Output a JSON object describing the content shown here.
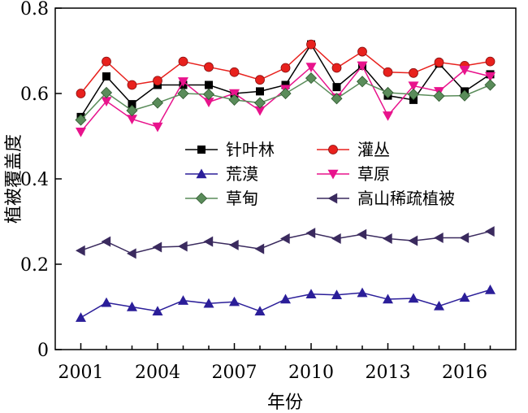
{
  "chart_data": {
    "type": "line",
    "xlabel": "年份",
    "ylabel": "植被覆盖度",
    "xlim": [
      2000,
      2018
    ],
    "ylim": [
      0,
      0.8
    ],
    "xticks": [
      "2001",
      "2004",
      "2007",
      "2010",
      "2013",
      "2016"
    ],
    "yticks": [
      "0",
      "0.2",
      "0.4",
      "0.6",
      "0.8"
    ],
    "grid": false,
    "legend_placement": "center",
    "x": [
      2001,
      2002,
      2003,
      2004,
      2005,
      2006,
      2007,
      2008,
      2009,
      2010,
      2011,
      2012,
      2013,
      2014,
      2015,
      2016,
      2017
    ],
    "series": [
      {
        "name": "针叶林",
        "color": "#000000",
        "marker": "square",
        "values": [
          0.545,
          0.64,
          0.575,
          0.62,
          0.62,
          0.62,
          0.6,
          0.605,
          0.62,
          0.715,
          0.615,
          0.665,
          0.595,
          0.585,
          0.67,
          0.605,
          0.645
        ]
      },
      {
        "name": "灌丛",
        "color": "#e8211d",
        "marker": "circle",
        "values": [
          0.6,
          0.675,
          0.62,
          0.63,
          0.675,
          0.662,
          0.65,
          0.632,
          0.66,
          0.715,
          0.66,
          0.698,
          0.65,
          0.648,
          0.673,
          0.665,
          0.675
        ]
      },
      {
        "name": "荒漠",
        "color": "#2b1e99",
        "marker": "triangle-up",
        "values": [
          0.075,
          0.11,
          0.1,
          0.09,
          0.115,
          0.108,
          0.112,
          0.09,
          0.118,
          0.13,
          0.128,
          0.133,
          0.118,
          0.12,
          0.102,
          0.122,
          0.14
        ]
      },
      {
        "name": "草原",
        "color": "#e8138c",
        "marker": "triangle-down",
        "values": [
          0.51,
          0.582,
          0.54,
          0.522,
          0.628,
          0.58,
          0.6,
          0.56,
          0.61,
          0.662,
          0.59,
          0.665,
          0.548,
          0.618,
          0.605,
          0.655,
          0.64
        ]
      },
      {
        "name": "草甸",
        "color": "#5a8c5a",
        "marker": "diamond",
        "values": [
          0.538,
          0.602,
          0.56,
          0.578,
          0.6,
          0.598,
          0.585,
          0.578,
          0.6,
          0.636,
          0.588,
          0.628,
          0.602,
          0.598,
          0.594,
          0.595,
          0.62
        ]
      },
      {
        "name": "高山稀疏植被",
        "color": "#3a2a5e",
        "marker": "triangle-left",
        "values": [
          0.232,
          0.253,
          0.225,
          0.24,
          0.242,
          0.253,
          0.245,
          0.236,
          0.26,
          0.273,
          0.26,
          0.27,
          0.26,
          0.255,
          0.262,
          0.262,
          0.277
        ]
      }
    ]
  }
}
